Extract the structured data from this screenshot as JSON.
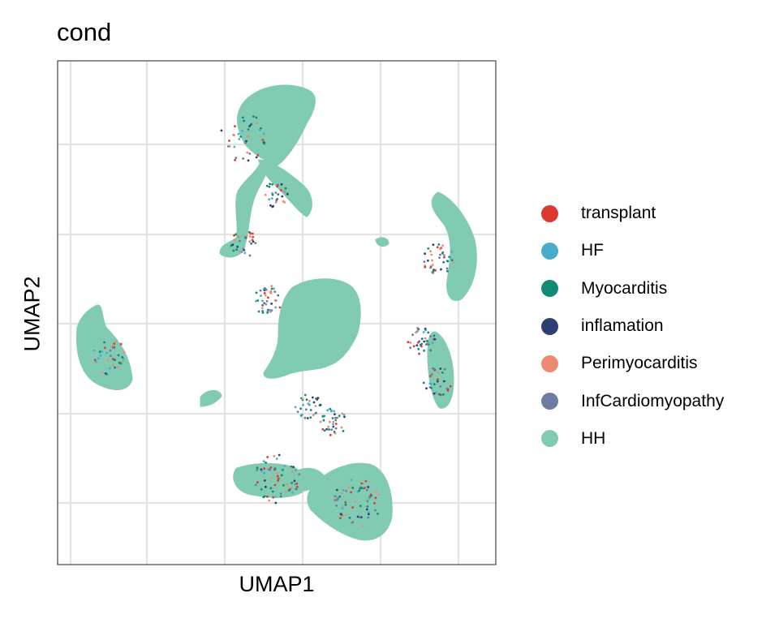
{
  "chart_data": {
    "type": "scatter",
    "title": "cond",
    "xlabel": "UMAP1",
    "ylabel": "UMAP2",
    "grid": true,
    "legend_position": "right",
    "axis_tick_labels": "none",
    "series": [
      {
        "name": "transplant",
        "color": "#DC3A2E"
      },
      {
        "name": "HF",
        "color": "#46AECB"
      },
      {
        "name": "Myocarditis",
        "color": "#138A73"
      },
      {
        "name": "inflamation",
        "color": "#2E3F76"
      },
      {
        "name": "Perimyocarditis",
        "color": "#EE8A70"
      },
      {
        "name": "InfCardiomyopathy",
        "color": "#6E7BA3"
      },
      {
        "name": "HH",
        "color": "#82CBB3"
      }
    ]
  }
}
